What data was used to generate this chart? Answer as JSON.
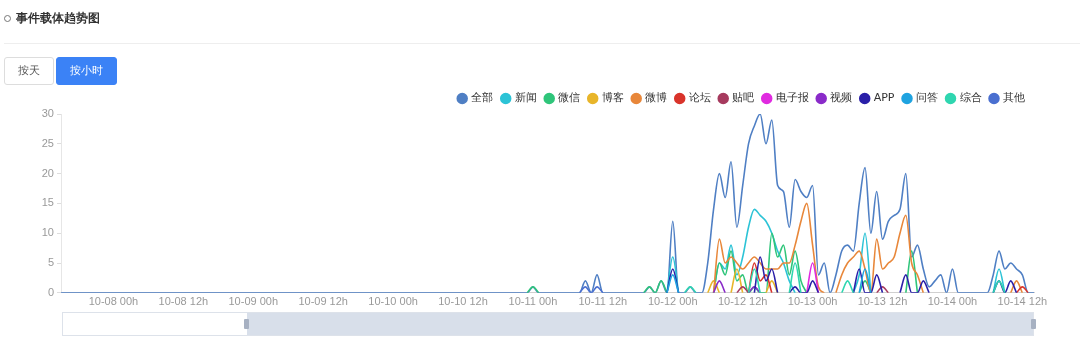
{
  "chart_data": {
    "type": "line",
    "title": "事件载体趋势图",
    "annotations": [
      "按天",
      "按小时"
    ],
    "categories": [
      null,
      null,
      null,
      null,
      null,
      null,
      null,
      null,
      null,
      "10-08 00h",
      null,
      null,
      null,
      null,
      null,
      null,
      null,
      null,
      null,
      null,
      null,
      "10-08 12h",
      null,
      null,
      null,
      null,
      null,
      null,
      null,
      null,
      null,
      null,
      null,
      "10-09 00h",
      null,
      null,
      null,
      null,
      null,
      null,
      null,
      null,
      null,
      null,
      null,
      "10-09 12h",
      null,
      null,
      null,
      null,
      null,
      null,
      null,
      null,
      null,
      null,
      null,
      "10-10 00h",
      null,
      null,
      null,
      null,
      null,
      null,
      null,
      null,
      null,
      null,
      null,
      "10-10 12h",
      null,
      null,
      null,
      null,
      null,
      null,
      null,
      null,
      null,
      null,
      null,
      "10-11 00h",
      null,
      null,
      null,
      null,
      null,
      null,
      null,
      null,
      null,
      null,
      null,
      "10-11 12h",
      null,
      null,
      null,
      null,
      null,
      null,
      null,
      null,
      null,
      null,
      null,
      "10-12 00h",
      null,
      null,
      null,
      null,
      null,
      null,
      null,
      null,
      null,
      null,
      null,
      "10-12 12h",
      null,
      null,
      null,
      null,
      null,
      null,
      null,
      null,
      null,
      null,
      null,
      "10-13 00h",
      null,
      null,
      null,
      null,
      null,
      null,
      null,
      null,
      null,
      null,
      null,
      "10-13 12h",
      null,
      null,
      null,
      null,
      null,
      null,
      null,
      null,
      null,
      null,
      null,
      "10-14 00h",
      null,
      null,
      null,
      null,
      null,
      null,
      null,
      null,
      null,
      null,
      null,
      "10-14 12h",
      null,
      null
    ],
    "ylim": [
      0,
      30
    ],
    "yticks": [
      0,
      5,
      10,
      15,
      20,
      25,
      30
    ],
    "grid": false,
    "legend": "top right",
    "marker": "none",
    "line_style": "solid",
    "series": [
      {
        "name": "全部",
        "color": "#4f7fc4",
        "values": [
          0,
          0,
          0,
          0,
          0,
          0,
          0,
          0,
          0,
          0,
          0,
          0,
          0,
          0,
          0,
          0,
          0,
          0,
          0,
          0,
          0,
          0,
          0,
          0,
          0,
          0,
          0,
          0,
          0,
          0,
          0,
          0,
          0,
          0,
          0,
          0,
          0,
          0,
          0,
          0,
          0,
          0,
          0,
          0,
          0,
          0,
          0,
          0,
          0,
          0,
          0,
          0,
          0,
          0,
          0,
          0,
          0,
          0,
          0,
          0,
          0,
          0,
          0,
          0,
          0,
          0,
          0,
          0,
          0,
          0,
          0,
          0,
          0,
          0,
          0,
          0,
          0,
          0,
          0,
          0,
          0,
          1,
          0,
          0,
          0,
          0,
          0,
          0,
          0,
          0,
          2,
          0,
          3,
          0,
          0,
          0,
          0,
          0,
          0,
          0,
          0,
          1,
          0,
          2,
          0,
          12,
          0,
          0,
          1,
          0,
          0,
          5,
          14,
          20,
          16,
          22,
          11,
          18,
          25,
          28,
          30,
          25,
          29,
          18,
          17,
          11,
          19,
          17,
          16,
          18,
          3,
          5,
          0,
          3,
          7,
          8,
          7,
          15,
          21,
          10,
          17,
          9,
          12,
          13,
          14,
          20,
          6,
          8,
          4,
          1,
          2,
          3,
          0,
          4,
          0,
          0,
          0,
          0,
          0,
          0,
          3,
          7,
          4,
          5,
          4,
          3,
          0,
          0
        ]
      },
      {
        "name": "新闻",
        "color": "#2cc3d6",
        "values": [
          null,
          null,
          null,
          null,
          null,
          null,
          null,
          null,
          null,
          null,
          null,
          null,
          null,
          null,
          null,
          null,
          null,
          null,
          null,
          null,
          null,
          null,
          null,
          null,
          null,
          null,
          null,
          null,
          null,
          null,
          null,
          null,
          null,
          null,
          null,
          null,
          null,
          null,
          null,
          null,
          null,
          null,
          null,
          null,
          null,
          null,
          null,
          null,
          null,
          null,
          null,
          null,
          null,
          null,
          null,
          null,
          null,
          null,
          null,
          null,
          null,
          null,
          null,
          null,
          null,
          null,
          null,
          null,
          null,
          null,
          null,
          null,
          null,
          null,
          null,
          null,
          null,
          null,
          null,
          null,
          null,
          null,
          null,
          null,
          null,
          null,
          null,
          null,
          null,
          null,
          null,
          null,
          null,
          null,
          null,
          null,
          null,
          null,
          null,
          null,
          null,
          null,
          null,
          null,
          0,
          6,
          0,
          null,
          null,
          null,
          null,
          null,
          0,
          5,
          4,
          8,
          3,
          6,
          11,
          14,
          13,
          12,
          10,
          7,
          5,
          2,
          0,
          null,
          null,
          null,
          null,
          null,
          null,
          null,
          null,
          null,
          0,
          3,
          10,
          0,
          null,
          null,
          null,
          null,
          null,
          null,
          null,
          null,
          null,
          null,
          null,
          null,
          null,
          null,
          null,
          null,
          null,
          null,
          null,
          null,
          0,
          4,
          0,
          null,
          null,
          null,
          null,
          null
        ]
      },
      {
        "name": "微信",
        "color": "#2fc57a",
        "values": [
          null,
          null,
          null,
          null,
          null,
          null,
          null,
          null,
          null,
          null,
          null,
          null,
          null,
          null,
          null,
          null,
          null,
          null,
          null,
          null,
          null,
          null,
          null,
          null,
          null,
          null,
          null,
          null,
          null,
          null,
          null,
          null,
          null,
          null,
          null,
          null,
          null,
          null,
          null,
          null,
          null,
          null,
          null,
          null,
          null,
          null,
          null,
          null,
          null,
          null,
          null,
          null,
          null,
          null,
          null,
          null,
          null,
          null,
          null,
          null,
          null,
          null,
          null,
          null,
          null,
          null,
          null,
          null,
          null,
          null,
          null,
          null,
          null,
          null,
          null,
          null,
          null,
          null,
          null,
          null,
          0,
          1,
          0,
          null,
          null,
          null,
          null,
          null,
          null,
          null,
          null,
          null,
          null,
          null,
          null,
          null,
          null,
          null,
          null,
          null,
          0,
          1,
          0,
          2,
          0,
          null,
          null,
          null,
          null,
          null,
          null,
          null,
          0,
          5,
          3,
          7,
          2,
          3,
          0,
          1,
          0,
          0,
          10,
          6,
          8,
          3,
          7,
          2,
          0,
          null,
          null,
          null,
          null,
          null,
          null,
          null,
          null,
          0,
          2,
          0,
          null,
          null,
          null,
          null,
          null,
          0,
          7,
          0,
          null,
          null,
          null,
          null,
          null,
          null,
          null,
          null,
          null,
          null,
          null,
          null,
          null,
          null,
          null,
          null,
          null,
          null,
          null,
          null
        ]
      },
      {
        "name": "博客",
        "color": "#e8b52a",
        "values": [
          null,
          null,
          null,
          null,
          null,
          null,
          null,
          null,
          null,
          null,
          null,
          null,
          null,
          null,
          null,
          null,
          null,
          null,
          null,
          null,
          null,
          null,
          null,
          null,
          null,
          null,
          null,
          null,
          null,
          null,
          null,
          null,
          null,
          null,
          null,
          null,
          null,
          null,
          null,
          null,
          null,
          null,
          null,
          null,
          null,
          null,
          null,
          null,
          null,
          null,
          null,
          null,
          null,
          null,
          null,
          null,
          null,
          null,
          null,
          null,
          null,
          null,
          null,
          null,
          null,
          null,
          null,
          null,
          null,
          null,
          null,
          null,
          null,
          null,
          null,
          null,
          null,
          null,
          null,
          null,
          null,
          null,
          null,
          null,
          null,
          null,
          null,
          null,
          null,
          null,
          null,
          null,
          null,
          null,
          null,
          null,
          null,
          null,
          null,
          null,
          null,
          null,
          null,
          null,
          null,
          null,
          null,
          null,
          null,
          null,
          null,
          0,
          2,
          0,
          null,
          0,
          4,
          0,
          null,
          null,
          null,
          0,
          2,
          0,
          null,
          null,
          null,
          null,
          null,
          null,
          null,
          null,
          null,
          null,
          null,
          null,
          null,
          null,
          null,
          null,
          null,
          null,
          null,
          null,
          null,
          null,
          null,
          null,
          null,
          null,
          null,
          null,
          null,
          null,
          null,
          null,
          null,
          null,
          null,
          null,
          null,
          null,
          null,
          null,
          null,
          null,
          null,
          null
        ]
      },
      {
        "name": "微博",
        "color": "#e8873a",
        "values": [
          null,
          null,
          null,
          null,
          null,
          null,
          null,
          null,
          null,
          null,
          null,
          null,
          null,
          null,
          null,
          null,
          null,
          null,
          null,
          null,
          null,
          null,
          null,
          null,
          null,
          null,
          null,
          null,
          null,
          null,
          null,
          null,
          null,
          null,
          null,
          null,
          null,
          null,
          null,
          null,
          null,
          null,
          null,
          null,
          null,
          null,
          null,
          null,
          null,
          null,
          null,
          null,
          null,
          null,
          null,
          null,
          null,
          null,
          null,
          null,
          null,
          null,
          null,
          null,
          null,
          null,
          null,
          null,
          null,
          null,
          null,
          null,
          null,
          null,
          null,
          null,
          null,
          null,
          null,
          null,
          null,
          null,
          null,
          null,
          null,
          null,
          null,
          null,
          null,
          null,
          null,
          null,
          null,
          null,
          null,
          null,
          null,
          null,
          null,
          null,
          null,
          null,
          null,
          null,
          null,
          null,
          null,
          null,
          null,
          null,
          null,
          null,
          0,
          9,
          5,
          6,
          5,
          4,
          5,
          6,
          5,
          4,
          4,
          4,
          5,
          5,
          8,
          12,
          15,
          8,
          1,
          0,
          null,
          0,
          3,
          5,
          6,
          7,
          4,
          0,
          9,
          4,
          5,
          6,
          10,
          13,
          5,
          3,
          0,
          null,
          null,
          null,
          null,
          null,
          null,
          null,
          null,
          null,
          null,
          null,
          null,
          null,
          null,
          0,
          2,
          0,
          null,
          null
        ]
      },
      {
        "name": "论坛",
        "color": "#d9342b",
        "values": [
          null,
          null,
          null,
          null,
          null,
          null,
          null,
          null,
          null,
          null,
          null,
          null,
          null,
          null,
          null,
          null,
          null,
          null,
          null,
          null,
          null,
          null,
          null,
          null,
          null,
          null,
          null,
          null,
          null,
          null,
          null,
          null,
          null,
          null,
          null,
          null,
          null,
          null,
          null,
          null,
          null,
          null,
          null,
          null,
          null,
          null,
          null,
          null,
          null,
          null,
          null,
          null,
          null,
          null,
          null,
          null,
          null,
          null,
          null,
          null,
          null,
          null,
          null,
          null,
          null,
          null,
          null,
          null,
          null,
          null,
          null,
          null,
          null,
          null,
          null,
          null,
          null,
          null,
          null,
          null,
          null,
          null,
          null,
          null,
          null,
          null,
          null,
          null,
          null,
          null,
          null,
          null,
          null,
          null,
          null,
          null,
          null,
          null,
          null,
          null,
          null,
          null,
          null,
          null,
          null,
          null,
          null,
          null,
          null,
          null,
          null,
          null,
          null,
          null,
          null,
          null,
          null,
          null,
          0,
          5,
          2,
          3,
          0,
          null,
          null,
          null,
          null,
          null,
          null,
          null,
          null,
          null,
          null,
          null,
          null,
          null,
          null,
          null,
          null,
          null,
          null,
          null,
          null,
          null,
          null,
          null,
          null,
          null,
          null,
          null,
          null,
          null,
          null,
          null,
          null,
          null,
          null,
          null,
          null,
          null,
          null,
          null,
          null,
          null,
          0,
          1,
          0,
          null
        ]
      },
      {
        "name": "贴吧",
        "color": "#a63a5e",
        "values": [
          null,
          null,
          null,
          null,
          null,
          null,
          null,
          null,
          null,
          null,
          null,
          null,
          null,
          null,
          null,
          null,
          null,
          null,
          null,
          null,
          null,
          null,
          null,
          null,
          null,
          null,
          null,
          null,
          null,
          null,
          null,
          null,
          null,
          null,
          null,
          null,
          null,
          null,
          null,
          null,
          null,
          null,
          null,
          null,
          null,
          null,
          null,
          null,
          null,
          null,
          null,
          null,
          null,
          null,
          null,
          null,
          null,
          null,
          null,
          null,
          null,
          null,
          null,
          null,
          null,
          null,
          null,
          null,
          null,
          null,
          null,
          null,
          null,
          null,
          null,
          null,
          null,
          null,
          null,
          null,
          null,
          null,
          null,
          null,
          null,
          null,
          null,
          null,
          null,
          null,
          null,
          null,
          null,
          null,
          null,
          null,
          null,
          null,
          null,
          null,
          null,
          null,
          null,
          null,
          null,
          null,
          null,
          null,
          null,
          null,
          null,
          null,
          null,
          null,
          null,
          null,
          0,
          1,
          0,
          null,
          null,
          null,
          null,
          null,
          null,
          null,
          null,
          null,
          null,
          null,
          null,
          null,
          null,
          null,
          null,
          null,
          null,
          null,
          null,
          null,
          0,
          1,
          0,
          null,
          null,
          null,
          null,
          null,
          null,
          null,
          null,
          null,
          null,
          null,
          null,
          null,
          null,
          null,
          null,
          null,
          null,
          null,
          null,
          null,
          null,
          null,
          null,
          null
        ]
      },
      {
        "name": "电子报",
        "color": "#e02be0",
        "values": [
          null,
          null,
          null,
          null,
          null,
          null,
          null,
          null,
          null,
          null,
          null,
          null,
          null,
          null,
          null,
          null,
          null,
          null,
          null,
          null,
          null,
          null,
          null,
          null,
          null,
          null,
          null,
          null,
          null,
          null,
          null,
          null,
          null,
          null,
          null,
          null,
          null,
          null,
          null,
          null,
          null,
          null,
          null,
          null,
          null,
          null,
          null,
          null,
          null,
          null,
          null,
          null,
          null,
          null,
          null,
          null,
          null,
          null,
          null,
          null,
          null,
          null,
          null,
          null,
          null,
          null,
          null,
          null,
          null,
          null,
          null,
          null,
          null,
          null,
          null,
          null,
          null,
          null,
          null,
          null,
          null,
          null,
          null,
          null,
          null,
          null,
          null,
          null,
          null,
          null,
          null,
          null,
          null,
          null,
          null,
          null,
          null,
          null,
          null,
          null,
          null,
          null,
          null,
          null,
          null,
          null,
          null,
          null,
          null,
          null,
          null,
          null,
          null,
          null,
          null,
          null,
          null,
          null,
          null,
          null,
          null,
          null,
          null,
          null,
          null,
          null,
          null,
          null,
          0,
          5,
          0,
          null,
          null,
          null,
          null,
          null,
          null,
          null,
          null,
          null,
          null,
          null,
          null,
          null,
          null,
          null,
          null,
          null,
          null,
          null,
          null,
          null,
          null,
          null,
          null,
          null,
          null,
          null,
          null,
          null,
          null,
          null,
          null,
          null,
          null,
          null,
          null,
          null
        ]
      },
      {
        "name": "视频",
        "color": "#8a2bc9",
        "values": [
          null,
          null,
          null,
          null,
          null,
          null,
          null,
          null,
          null,
          null,
          null,
          null,
          null,
          null,
          null,
          null,
          null,
          null,
          null,
          null,
          null,
          null,
          null,
          null,
          null,
          null,
          null,
          null,
          null,
          null,
          null,
          null,
          null,
          null,
          null,
          null,
          null,
          null,
          null,
          null,
          null,
          null,
          null,
          null,
          null,
          null,
          null,
          null,
          null,
          null,
          null,
          null,
          null,
          null,
          null,
          null,
          null,
          null,
          null,
          null,
          null,
          null,
          null,
          null,
          null,
          null,
          null,
          null,
          null,
          null,
          null,
          null,
          null,
          null,
          null,
          null,
          null,
          null,
          null,
          null,
          null,
          null,
          null,
          null,
          null,
          null,
          null,
          null,
          null,
          null,
          null,
          null,
          null,
          null,
          null,
          null,
          null,
          null,
          null,
          null,
          null,
          null,
          null,
          null,
          null,
          null,
          null,
          null,
          null,
          null,
          null,
          null,
          0,
          2,
          0,
          null,
          null,
          null,
          0,
          1,
          0,
          null,
          null,
          null,
          null,
          null,
          null,
          null,
          null,
          null,
          null,
          null,
          null,
          null,
          null,
          null,
          null,
          null,
          null,
          null,
          null,
          null,
          null,
          null,
          null,
          null,
          null,
          null,
          null,
          null,
          null,
          null,
          null,
          null,
          null,
          null,
          null,
          null,
          null,
          null,
          null,
          null,
          null,
          null,
          null,
          null,
          null,
          null
        ]
      },
      {
        "name": "APP",
        "color": "#2a1fa8",
        "values": [
          null,
          null,
          null,
          null,
          null,
          null,
          null,
          null,
          null,
          null,
          null,
          null,
          null,
          null,
          null,
          null,
          null,
          null,
          null,
          null,
          null,
          null,
          null,
          null,
          null,
          null,
          null,
          null,
          null,
          null,
          null,
          null,
          null,
          null,
          null,
          null,
          null,
          null,
          null,
          null,
          null,
          null,
          null,
          null,
          null,
          null,
          null,
          null,
          null,
          null,
          null,
          null,
          null,
          null,
          null,
          null,
          null,
          null,
          null,
          null,
          null,
          null,
          null,
          null,
          null,
          null,
          null,
          null,
          null,
          null,
          null,
          null,
          null,
          null,
          null,
          null,
          null,
          null,
          null,
          null,
          null,
          null,
          null,
          null,
          null,
          null,
          null,
          null,
          null,
          null,
          null,
          null,
          null,
          null,
          null,
          null,
          null,
          null,
          null,
          null,
          null,
          null,
          null,
          null,
          0,
          4,
          0,
          null,
          null,
          null,
          null,
          null,
          null,
          null,
          null,
          null,
          null,
          null,
          null,
          0,
          6,
          2,
          4,
          0,
          null,
          0,
          1,
          0,
          0,
          2,
          0,
          null,
          null,
          null,
          null,
          null,
          0,
          4,
          0,
          0,
          3,
          0,
          null,
          null,
          0,
          3,
          0,
          0,
          2,
          0,
          null,
          null,
          null,
          null,
          null,
          null,
          null,
          null,
          null,
          null,
          0,
          2,
          0,
          2,
          0,
          null,
          null,
          null
        ]
      },
      {
        "name": "问答",
        "color": "#1fa3e0",
        "values": [
          null,
          null,
          null,
          null,
          null,
          null,
          null,
          null,
          null,
          null,
          null,
          null,
          null,
          null,
          null,
          null,
          null,
          null,
          null,
          null,
          null,
          null,
          null,
          null,
          null,
          null,
          null,
          null,
          null,
          null,
          null,
          null,
          null,
          null,
          null,
          null,
          null,
          null,
          null,
          null,
          null,
          null,
          null,
          null,
          null,
          null,
          null,
          null,
          null,
          null,
          null,
          null,
          null,
          null,
          null,
          null,
          null,
          null,
          null,
          null,
          null,
          null,
          null,
          null,
          null,
          null,
          null,
          null,
          null,
          null,
          null,
          null,
          null,
          null,
          null,
          null,
          null,
          null,
          null,
          null,
          null,
          null,
          null,
          null,
          null,
          null,
          null,
          null,
          null,
          null,
          null,
          null,
          null,
          null,
          null,
          null,
          null,
          null,
          null,
          null,
          null,
          null,
          null,
          null,
          0,
          3,
          0,
          null,
          null,
          null,
          null,
          null,
          null,
          null,
          null,
          null,
          null,
          null,
          null,
          null,
          null,
          null,
          null,
          null,
          null,
          null,
          null,
          null,
          null,
          null,
          null,
          null,
          null,
          null,
          null,
          null,
          null,
          0,
          4,
          0,
          null,
          null,
          null,
          null,
          null,
          null,
          null,
          null,
          null,
          null,
          null,
          null,
          null,
          null,
          null,
          null,
          null,
          null,
          null,
          null,
          null,
          null,
          null,
          null,
          null,
          null,
          null,
          null
        ]
      },
      {
        "name": "综合",
        "color": "#2fd6b0",
        "values": [
          null,
          null,
          null,
          null,
          null,
          null,
          null,
          null,
          null,
          null,
          null,
          null,
          null,
          null,
          null,
          null,
          null,
          null,
          null,
          null,
          null,
          null,
          null,
          null,
          null,
          null,
          null,
          null,
          null,
          null,
          null,
          null,
          null,
          null,
          null,
          null,
          null,
          null,
          null,
          null,
          null,
          null,
          null,
          null,
          null,
          null,
          null,
          null,
          null,
          null,
          null,
          null,
          null,
          null,
          null,
          null,
          null,
          null,
          null,
          null,
          null,
          null,
          null,
          null,
          null,
          null,
          null,
          null,
          null,
          null,
          null,
          null,
          null,
          null,
          null,
          null,
          null,
          null,
          null,
          null,
          null,
          null,
          null,
          null,
          null,
          null,
          null,
          null,
          null,
          null,
          null,
          null,
          null,
          null,
          null,
          null,
          null,
          null,
          null,
          null,
          null,
          null,
          null,
          null,
          null,
          null,
          null,
          0,
          1,
          0,
          null,
          null,
          null,
          null,
          null,
          null,
          null,
          null,
          0,
          4,
          0,
          null,
          null,
          null,
          null,
          0,
          5,
          0,
          null,
          null,
          null,
          null,
          null,
          null,
          0,
          2,
          0,
          null,
          null,
          null,
          null,
          null,
          null,
          null,
          null,
          null,
          null,
          null,
          null,
          null,
          null,
          null,
          null,
          null,
          null,
          null,
          null,
          null,
          null,
          null,
          0,
          2,
          0,
          null,
          null,
          null,
          null,
          null
        ]
      },
      {
        "name": "其他",
        "color": "#4a6fd0",
        "values": [
          null,
          null,
          null,
          null,
          null,
          null,
          null,
          null,
          null,
          null,
          null,
          null,
          null,
          null,
          null,
          null,
          null,
          null,
          null,
          null,
          null,
          null,
          null,
          null,
          null,
          null,
          null,
          null,
          null,
          null,
          null,
          null,
          null,
          null,
          null,
          null,
          null,
          null,
          null,
          null,
          null,
          null,
          null,
          null,
          null,
          null,
          null,
          null,
          null,
          null,
          null,
          null,
          null,
          null,
          null,
          null,
          null,
          null,
          null,
          null,
          null,
          null,
          null,
          null,
          null,
          null,
          null,
          null,
          null,
          null,
          null,
          null,
          null,
          null,
          null,
          null,
          null,
          null,
          null,
          null,
          null,
          null,
          null,
          null,
          null,
          null,
          null,
          null,
          null,
          0,
          1,
          0,
          1,
          0,
          null,
          null,
          null,
          null,
          null,
          null,
          null,
          null,
          null,
          null,
          null,
          null,
          null,
          null,
          null,
          null,
          null,
          null,
          null,
          null,
          null,
          null,
          null,
          null,
          null,
          null,
          null,
          null,
          null,
          null,
          null,
          null,
          null,
          null,
          null,
          null,
          null,
          null,
          null,
          null,
          null,
          null,
          null,
          null,
          null,
          null,
          null,
          null,
          null,
          null,
          null,
          null,
          null,
          null,
          null,
          null,
          null,
          null,
          null,
          null,
          null,
          null,
          null,
          null,
          null,
          null,
          null,
          null,
          null,
          null,
          null,
          null,
          null,
          null
        ]
      }
    ]
  }
}
